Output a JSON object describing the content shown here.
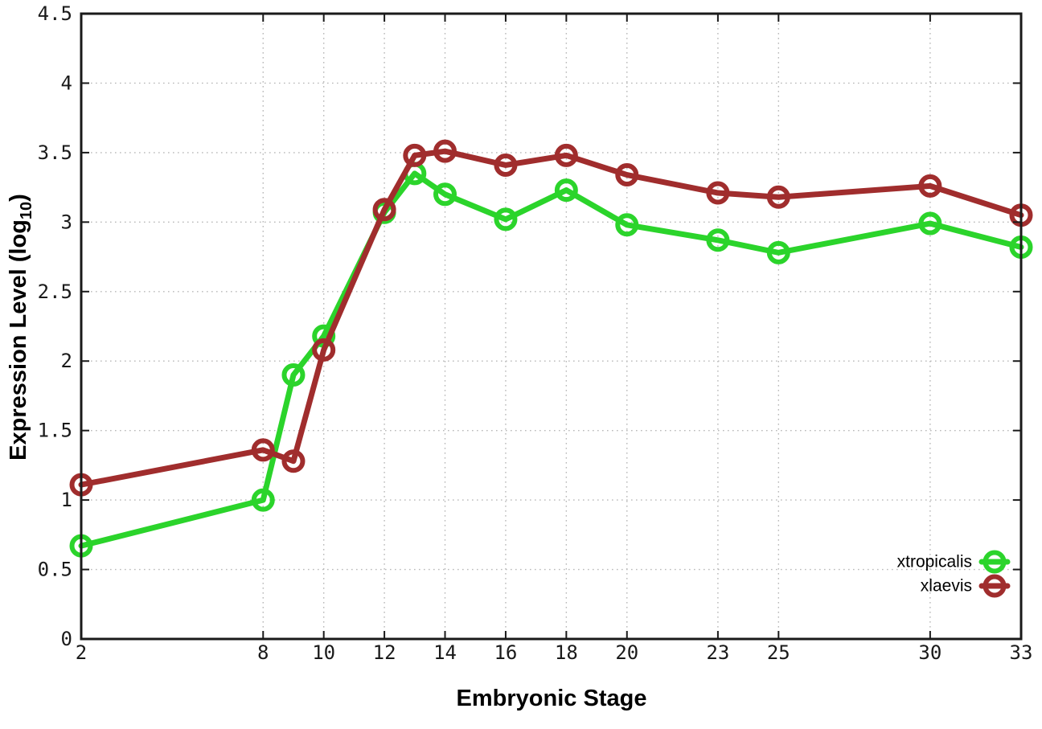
{
  "chart_data": {
    "type": "line",
    "title": "",
    "xlabel": "Embryonic Stage",
    "ylabel": {
      "text": "Expression Level (log10)",
      "main": "Expression Level (log",
      "sub": "10",
      "close": ")"
    },
    "xlim": [
      2,
      33
    ],
    "ylim": [
      0,
      4.5
    ],
    "grid": true,
    "x_tick_values": [
      2,
      8,
      10,
      12,
      14,
      16,
      18,
      20,
      23,
      25,
      30,
      33
    ],
    "x_tick_labels": [
      "2",
      "8",
      "10",
      "12",
      "14",
      "16",
      "18",
      "20",
      "23",
      "25",
      "30",
      "33"
    ],
    "y_tick_values": [
      0,
      0.5,
      1,
      1.5,
      2,
      2.5,
      3,
      3.5,
      4,
      4.5
    ],
    "y_tick_labels": [
      "0",
      "0.5",
      "1",
      "1.5",
      "2",
      "2.5",
      "3",
      "3.5",
      "4",
      "4.5"
    ],
    "x": [
      2,
      8,
      9,
      10,
      12,
      13,
      14,
      16,
      18,
      20,
      23,
      25,
      30,
      33
    ],
    "series": [
      {
        "name": "xtropicalis",
        "color": "#2bd42b",
        "values": [
          0.67,
          1.0,
          1.9,
          2.18,
          3.07,
          3.35,
          3.2,
          3.02,
          3.23,
          2.98,
          2.87,
          2.78,
          2.99,
          2.82
        ]
      },
      {
        "name": "xlaevis",
        "color": "#a02d2d",
        "values": [
          1.11,
          1.36,
          1.28,
          2.08,
          3.09,
          3.48,
          3.51,
          3.41,
          3.48,
          3.34,
          3.21,
          3.18,
          3.26,
          3.05
        ]
      }
    ],
    "legend": {
      "position": "inside-bottom-right",
      "entries": [
        "xtropicalis",
        "xlaevis"
      ]
    },
    "colors": {
      "axis": "#1a1a1a",
      "grid": "#b8b8b8",
      "background": "#ffffff",
      "text": "#000000"
    }
  }
}
